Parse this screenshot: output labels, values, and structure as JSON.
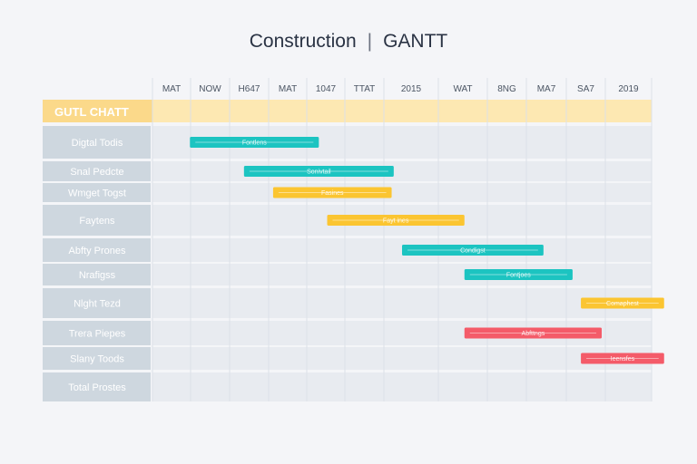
{
  "title": {
    "main": "Construction",
    "separator": "|",
    "suffix": "GANTT"
  },
  "chart_data": {
    "type": "gantt",
    "title": "Construction | GANTT",
    "header_label": "GUTL CHATT",
    "timeline_labels": [
      "MAT",
      "NOW",
      "H647",
      "MAT",
      "1047",
      "TTAT",
      "2015",
      "WAT",
      "8NG",
      "MA7",
      "SA7",
      "2019"
    ],
    "rows": [
      "Digtal Todis",
      "Snal Pedcte",
      "Wmget Togst",
      "Faytens",
      "Abfty Prones",
      "Nrafigss",
      "Nlght Tezd",
      "Trera Piepes",
      "Slany Toods",
      "Total Prostes"
    ],
    "tasks": [
      {
        "row": 0,
        "start": 0.9,
        "end": 4.0,
        "label": "Fontlens",
        "color": "#1cc4c1"
      },
      {
        "row": 1,
        "start": 2.2,
        "end": 5.8,
        "label": "Sonivtail",
        "color": "#1cc4c1"
      },
      {
        "row": 2,
        "start": 2.9,
        "end": 5.75,
        "label": "Fasines",
        "color": "#fbc531"
      },
      {
        "row": 3,
        "start": 4.2,
        "end": 7.5,
        "label": "Fayt ines",
        "color": "#fbc531"
      },
      {
        "row": 4,
        "start": 6.0,
        "end": 9.4,
        "label": "Condigst",
        "color": "#1cc4c1"
      },
      {
        "row": 5,
        "start": 7.5,
        "end": 10.1,
        "label": "Fontjoes",
        "color": "#1cc4c1"
      },
      {
        "row": 6,
        "start": 10.3,
        "end": 12.3,
        "label": "Comaphest",
        "color": "#fbc531"
      },
      {
        "row": 7,
        "start": 7.5,
        "end": 10.8,
        "label": "Abfttngs",
        "color": "#f45b69"
      },
      {
        "row": 8,
        "start": 10.3,
        "end": 12.3,
        "label": "Ieensfes",
        "color": "#f45b69"
      }
    ]
  }
}
